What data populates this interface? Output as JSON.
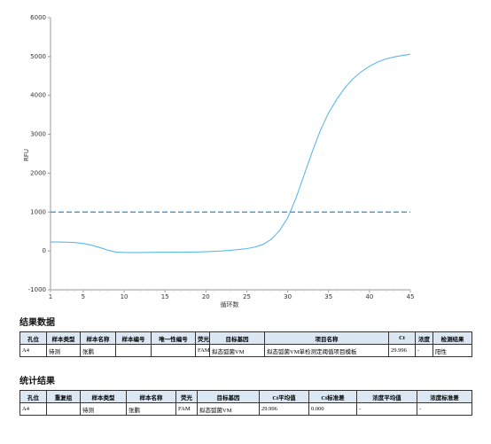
{
  "chart_data": {
    "type": "line",
    "ylabel": "RFU",
    "xlabel": "循环数",
    "x": [
      1,
      2,
      3,
      4,
      5,
      6,
      7,
      8,
      9,
      10,
      11,
      12,
      13,
      14,
      15,
      16,
      17,
      18,
      19,
      20,
      21,
      22,
      23,
      24,
      25,
      26,
      27,
      28,
      29,
      30,
      31,
      32,
      33,
      34,
      35,
      36,
      37,
      38,
      39,
      40,
      41,
      42,
      43,
      44,
      45
    ],
    "series": [
      {
        "color": "#5ab9e8",
        "values": [
          230,
          230,
          225,
          215,
          190,
          150,
          90,
          20,
          -30,
          -40,
          -40,
          -40,
          -38,
          -36,
          -35,
          -33,
          -31,
          -29,
          -26,
          -20,
          -10,
          0,
          15,
          35,
          60,
          100,
          170,
          300,
          520,
          850,
          1350,
          1950,
          2550,
          3100,
          3550,
          3900,
          4200,
          4430,
          4610,
          4750,
          4860,
          4940,
          4990,
          5030,
          5060
        ]
      }
    ],
    "threshold": {
      "value": 1000,
      "color": "#3a9ad9"
    },
    "xlim": [
      1,
      45
    ],
    "xticks": [
      1,
      5,
      10,
      15,
      20,
      25,
      30,
      35,
      40,
      45
    ],
    "ylim": [
      -1000,
      6000
    ],
    "yticks": [
      -1000,
      0,
      1000,
      2000,
      3000,
      4000,
      5000,
      6000
    ]
  },
  "sections": [
    "结果数据",
    "统计结果"
  ],
  "tables": [
    {
      "header": [
        "孔位",
        "样本类型",
        "样本名称",
        "样本编号",
        "唯一性编号",
        "荧光",
        "目标基因",
        "项目名称",
        "Ct",
        "浓度",
        "检测结果"
      ],
      "rows": [
        [
          "A4",
          "待测",
          "张鹏",
          null,
          null,
          "FAM",
          "拟态弧菌VM",
          "拟态弧菌VM单检测定阈值项目模板",
          "29.996",
          "-",
          "阳性"
        ]
      ]
    },
    {
      "header": [
        "孔位",
        "重复组",
        "样本类型",
        "样本名称",
        "荧光",
        "目标基因",
        "Ct平均值",
        "Ct标准差",
        "浓度平均值",
        "浓度标准差"
      ],
      "rows": [
        [
          "A4",
          null,
          "待测",
          "张鹏",
          "FAM",
          "拟态弧菌VM",
          "29.996",
          "0.000",
          "-",
          "-"
        ]
      ]
    }
  ]
}
